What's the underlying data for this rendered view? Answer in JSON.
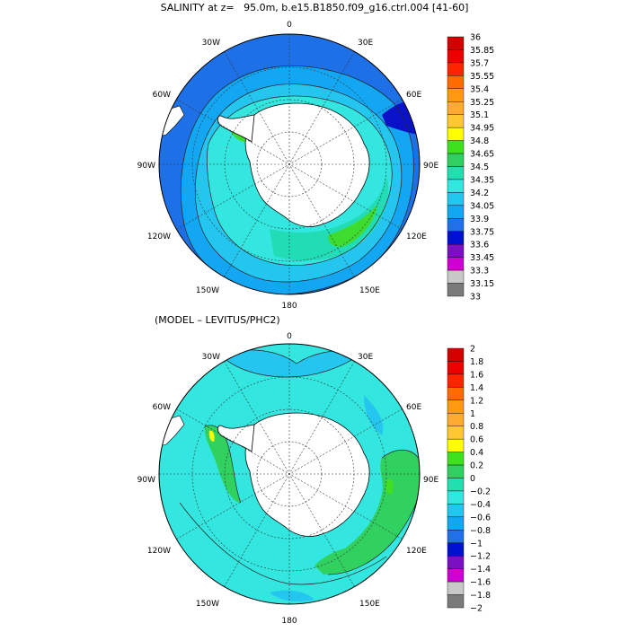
{
  "top_title": "SALINITY at z=   95.0m, b.e15.B1850.f09_g16.ctrl.004 [41-60]",
  "bottom_title": "(MODEL – LEVITUS/PHC2)",
  "longitude_labels": {
    "n0": "0",
    "e30": "30E",
    "e60": "60E",
    "e90": "90E",
    "e120": "120E",
    "e150": "150E",
    "s180": "180",
    "w150": "150W",
    "w120": "120W",
    "w90": "90W",
    "w60": "60W",
    "w30": "30W"
  },
  "colorbar_top": {
    "labels": [
      "36",
      "35.85",
      "35.7",
      "35.55",
      "35.4",
      "35.25",
      "35.1",
      "34.95",
      "34.8",
      "34.65",
      "34.5",
      "34.35",
      "34.2",
      "34.05",
      "33.9",
      "33.75",
      "33.6",
      "33.45",
      "33.3",
      "33.15",
      "33"
    ],
    "colors": [
      "#d40000",
      "#ee0000",
      "#ff2400",
      "#ff6a00",
      "#ff9a10",
      "#ffaa30",
      "#ffc830",
      "#ffff00",
      "#40e020",
      "#30d060",
      "#20e0b0",
      "#30e8e0",
      "#20c8f0",
      "#10a8f0",
      "#2070e8",
      "#0010d0",
      "#7a10c0",
      "#d000d0",
      "#c8c8c8",
      "#7a7a7a"
    ]
  },
  "colorbar_bottom": {
    "labels": [
      "2",
      "1.8",
      "1.6",
      "1.4",
      "1.2",
      "1",
      "0.8",
      "0.6",
      "0.4",
      "0.2",
      "0",
      "−0.2",
      "−0.4",
      "−0.6",
      "−0.8",
      "−1",
      "−1.2",
      "−1.4",
      "−1.6",
      "−1.8",
      "−2"
    ],
    "colors": [
      "#d40000",
      "#ee0000",
      "#ff2400",
      "#ff6a00",
      "#ff9a10",
      "#ffaa30",
      "#ffc830",
      "#ffff00",
      "#40e020",
      "#30d060",
      "#20e0b0",
      "#30e8e0",
      "#20c8f0",
      "#10a8f0",
      "#2070e8",
      "#0010d0",
      "#7a10c0",
      "#d000d0",
      "#c8c8c8",
      "#7a7a7a"
    ]
  }
}
